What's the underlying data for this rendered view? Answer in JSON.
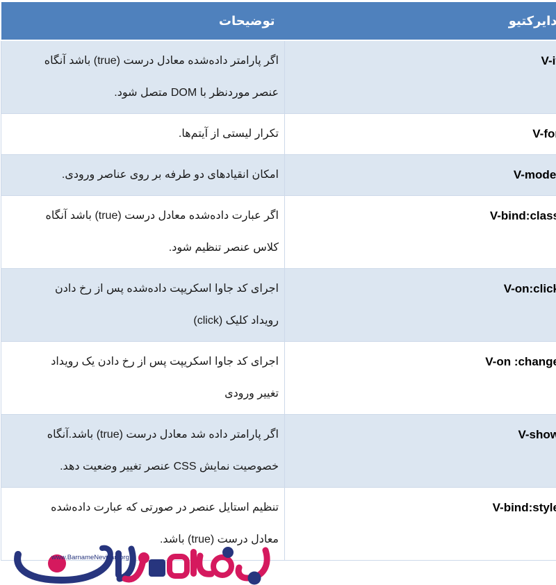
{
  "colors": {
    "header_bg": "#4f81bd",
    "band_bg": "#dce6f1",
    "border": "#cdd9e9",
    "header_text": "#ffffff",
    "body_text": "#1a1a1a",
    "logo_navy": "#27357e",
    "logo_pink": "#d5195e"
  },
  "table": {
    "headers": {
      "directive": "دایرکتیو",
      "description": "توضیحات"
    },
    "rows": [
      {
        "directive": "V-if",
        "banded": true,
        "description_lines": [
          "اگر پارامتر داده‌شده معادل درست (true) باشد آنگاه",
          "عنصر موردنظر با DOM متصل شود."
        ]
      },
      {
        "directive": "V-for",
        "banded": false,
        "description_lines": [
          "تکرار لیستی از آیتم‌ها."
        ]
      },
      {
        "directive": "V-model",
        "banded": true,
        "description_lines": [
          "امکان انقیادهای دو طرفه بر روی عناصر ورودی."
        ]
      },
      {
        "directive": "V-bind:class",
        "banded": false,
        "description_lines": [
          "اگر عبارت داده‌شده معادل درست (true) باشد آنگاه",
          "کلاس عنصر تنظیم شود."
        ]
      },
      {
        "directive": "V-on:click",
        "banded": true,
        "description_lines": [
          "اجرای کد جاوا اسکریپت داده‌شده پس از رخ دادن",
          "رویداد کلیک (click)"
        ]
      },
      {
        "directive": "V-on :change",
        "banded": false,
        "description_lines": [
          "اجرای کد جاوا اسکریپت پس از رخ دادن یک رویداد",
          "تغییر ورودی"
        ]
      },
      {
        "directive": "V-show",
        "banded": true,
        "description_lines": [
          "اگر پارامتر داده شد معادل درست (true)  باشد.آنگاه",
          "خصوصیت نمایش CSS عنصر تغییر وضعیت دهد."
        ]
      },
      {
        "directive": "V-bind:style",
        "banded": false,
        "description_lines": [
          "تنظیم استایل عنصر در صورتی که عبارت داده‌شده",
          "معادل درست (true) باشد."
        ]
      }
    ]
  },
  "logo": {
    "url_text": "www.BarnameNevisan.org"
  }
}
